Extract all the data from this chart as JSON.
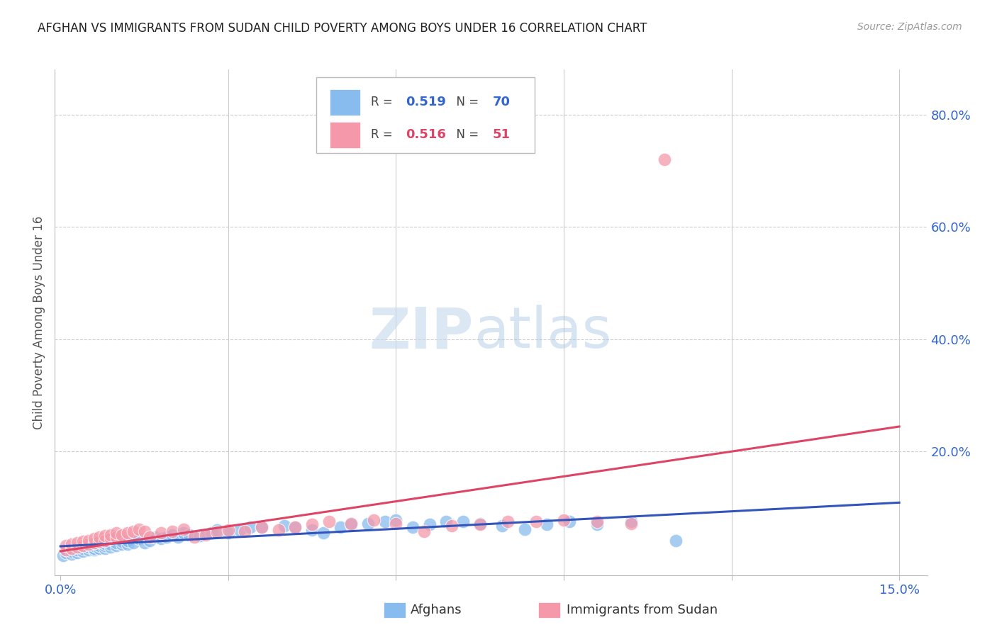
{
  "title": "AFGHAN VS IMMIGRANTS FROM SUDAN CHILD POVERTY AMONG BOYS UNDER 16 CORRELATION CHART",
  "source": "Source: ZipAtlas.com",
  "ylabel": "Child Poverty Among Boys Under 16",
  "ytick_labels": [
    "20.0%",
    "40.0%",
    "60.0%",
    "80.0%"
  ],
  "ytick_values": [
    0.2,
    0.4,
    0.6,
    0.8
  ],
  "xtick_values": [
    0.0,
    0.03,
    0.06,
    0.09,
    0.12,
    0.15
  ],
  "xlim": [
    -0.001,
    0.155
  ],
  "ylim": [
    -0.02,
    0.88
  ],
  "blue_R": 0.519,
  "blue_N": 70,
  "pink_R": 0.516,
  "pink_N": 51,
  "legend_label_blue": "Afghans",
  "legend_label_pink": "Immigrants from Sudan",
  "blue_color": "#88bbee",
  "pink_color": "#f599aa",
  "blue_line_color": "#3355bb",
  "pink_line_color": "#dd4466",
  "legend_R_color_blue": "#3366cc",
  "legend_R_color_pink": "#dd4466",
  "axis_label_color": "#3366cc",
  "watermark_color": "#ddeeff",
  "background_color": "#ffffff",
  "blue_x": [
    0.0005,
    0.001,
    0.001,
    0.002,
    0.002,
    0.002,
    0.003,
    0.003,
    0.003,
    0.004,
    0.004,
    0.004,
    0.005,
    0.005,
    0.005,
    0.006,
    0.006,
    0.006,
    0.007,
    0.007,
    0.008,
    0.008,
    0.008,
    0.009,
    0.009,
    0.01,
    0.01,
    0.011,
    0.011,
    0.012,
    0.012,
    0.013,
    0.014,
    0.015,
    0.016,
    0.017,
    0.018,
    0.019,
    0.02,
    0.021,
    0.022,
    0.023,
    0.025,
    0.027,
    0.028,
    0.03,
    0.032,
    0.034,
    0.036,
    0.04,
    0.042,
    0.045,
    0.047,
    0.05,
    0.052,
    0.055,
    0.058,
    0.06,
    0.063,
    0.066,
    0.069,
    0.072,
    0.075,
    0.079,
    0.083,
    0.087,
    0.091,
    0.096,
    0.102,
    0.11
  ],
  "blue_y": [
    0.015,
    0.02,
    0.025,
    0.018,
    0.022,
    0.028,
    0.02,
    0.025,
    0.03,
    0.022,
    0.027,
    0.032,
    0.025,
    0.03,
    0.035,
    0.025,
    0.028,
    0.032,
    0.028,
    0.032,
    0.028,
    0.032,
    0.036,
    0.03,
    0.035,
    0.032,
    0.038,
    0.035,
    0.04,
    0.035,
    0.042,
    0.038,
    0.045,
    0.038,
    0.042,
    0.048,
    0.045,
    0.048,
    0.052,
    0.048,
    0.055,
    0.052,
    0.05,
    0.055,
    0.06,
    0.055,
    0.06,
    0.065,
    0.065,
    0.068,
    0.065,
    0.06,
    0.055,
    0.065,
    0.07,
    0.072,
    0.075,
    0.078,
    0.065,
    0.07,
    0.075,
    0.075,
    0.072,
    0.068,
    0.062,
    0.07,
    0.075,
    0.07,
    0.075,
    0.042
  ],
  "pink_x": [
    0.001,
    0.001,
    0.002,
    0.002,
    0.003,
    0.003,
    0.004,
    0.004,
    0.005,
    0.005,
    0.006,
    0.006,
    0.007,
    0.007,
    0.008,
    0.008,
    0.009,
    0.009,
    0.01,
    0.01,
    0.011,
    0.012,
    0.013,
    0.014,
    0.015,
    0.016,
    0.018,
    0.02,
    0.022,
    0.024,
    0.026,
    0.028,
    0.03,
    0.033,
    0.036,
    0.039,
    0.042,
    0.045,
    0.048,
    0.052,
    0.056,
    0.06,
    0.065,
    0.07,
    0.075,
    0.08,
    0.085,
    0.09,
    0.096,
    0.102,
    0.108
  ],
  "pink_y": [
    0.025,
    0.032,
    0.028,
    0.035,
    0.03,
    0.038,
    0.032,
    0.04,
    0.035,
    0.042,
    0.038,
    0.045,
    0.04,
    0.048,
    0.042,
    0.05,
    0.045,
    0.052,
    0.048,
    0.055,
    0.052,
    0.055,
    0.058,
    0.062,
    0.058,
    0.048,
    0.055,
    0.058,
    0.062,
    0.048,
    0.052,
    0.056,
    0.06,
    0.058,
    0.065,
    0.06,
    0.065,
    0.07,
    0.075,
    0.072,
    0.078,
    0.072,
    0.058,
    0.068,
    0.07,
    0.075,
    0.075,
    0.078,
    0.075,
    0.072,
    0.72
  ]
}
